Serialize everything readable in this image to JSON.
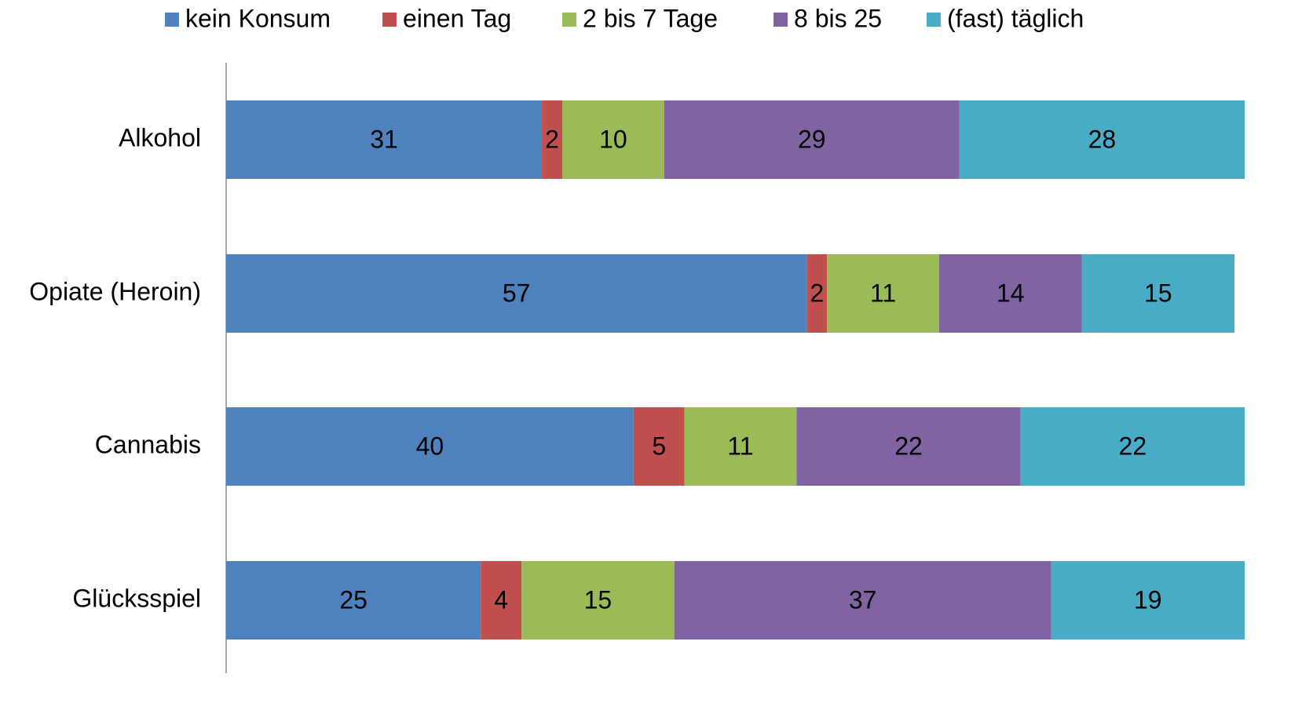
{
  "chart_data": {
    "type": "stacked_barh",
    "categories": [
      "Alkohol",
      "Opiate (Heroin)",
      "Cannabis",
      "Glücksspiel"
    ],
    "series": [
      {
        "name": "kein Konsum",
        "color": "#4f81bd",
        "label_color": "#ffffff",
        "values": [
          31,
          57,
          40,
          25
        ]
      },
      {
        "name": "einen Tag",
        "color": "#c0504d",
        "label_color": "#000000",
        "values": [
          2,
          2,
          5,
          4
        ]
      },
      {
        "name": "2 bis 7 Tage",
        "color": "#9bbb59",
        "label_color": "#000000",
        "values": [
          10,
          11,
          11,
          15
        ]
      },
      {
        "name": "8 bis 25",
        "color": "#8064a2",
        "label_color": "#ffffff",
        "values": [
          29,
          14,
          22,
          37
        ]
      },
      {
        "name": "(fast) täglich",
        "color": "#4bacc6",
        "label_color": "#000000",
        "values": [
          28,
          15,
          22,
          19
        ]
      }
    ],
    "xlim": [
      0,
      100
    ]
  }
}
